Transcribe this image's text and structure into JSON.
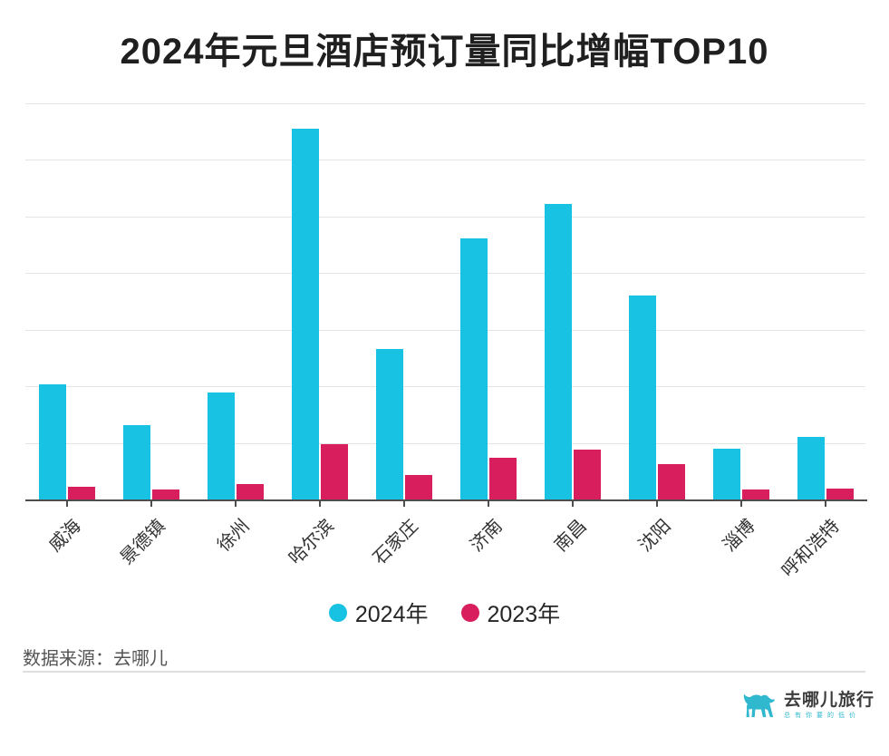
{
  "chart_data": {
    "type": "bar",
    "title": "2024年元旦酒店预订量同比增幅TOP10",
    "categories": [
      "威海",
      "景德镇",
      "徐州",
      "哈尔滨",
      "石家庄",
      "济南",
      "南昌",
      "沈阳",
      "淄博",
      "呼和浩特"
    ],
    "series": [
      {
        "name": "2024年",
        "color": "#18C2E2",
        "values": [
          204,
          132,
          189,
          655,
          266,
          462,
          523,
          361,
          90,
          110
        ]
      },
      {
        "name": "2023年",
        "color": "#D81E5C",
        "values": [
          22,
          18,
          28,
          98,
          44,
          74,
          88,
          62,
          17,
          20
        ]
      }
    ],
    "xlabel": "",
    "ylabel": "",
    "ylim": [
      0,
      700
    ],
    "grid_interval": 100,
    "grid": true,
    "y_axis_labels_visible": false,
    "value_units": "relative units (y-axis unlabeled; values estimated from gridlines)",
    "legend_position": "bottom"
  },
  "footer": {
    "source": "数据来源：去哪儿",
    "logo_text": "去哪儿旅行",
    "logo_tagline": "总有你要的低价"
  },
  "colors": {
    "series_2024": "#18C2E2",
    "series_2023": "#D81E5C",
    "gridline": "#E4E4E4",
    "axis": "#4D4D4D",
    "title_text": "#1F1F1F",
    "x_label_text": "#333333",
    "source_text": "#545454",
    "logo_teal": "#2FB8CE"
  }
}
